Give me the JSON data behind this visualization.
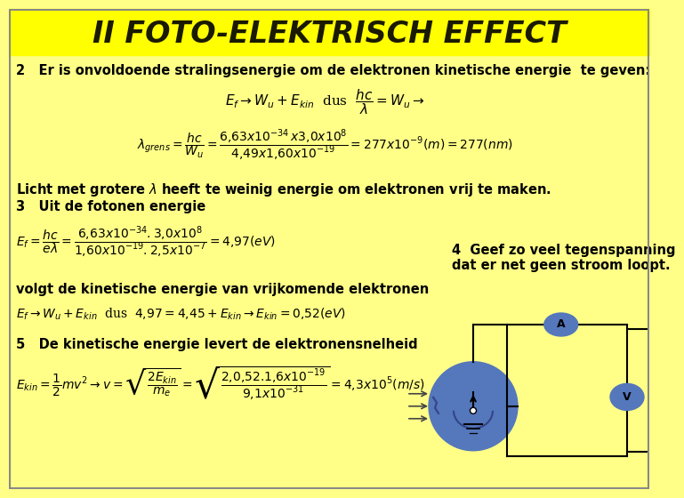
{
  "title": "II FOTO-ELEKTRISCH EFFECT",
  "bg_color": "#FFFF88",
  "title_bg": "#FFFF00",
  "title_color": "#1a1a00",
  "text_color": "#000000",
  "circuit_color": "#5577BB",
  "circuit_dark": "#334488",
  "title_fontsize": 24,
  "body_fontsize": 10.5,
  "math_fontsize": 10,
  "note4": "4  Geef zo veel tegenspanning\ndat er net geen stroom loopt."
}
